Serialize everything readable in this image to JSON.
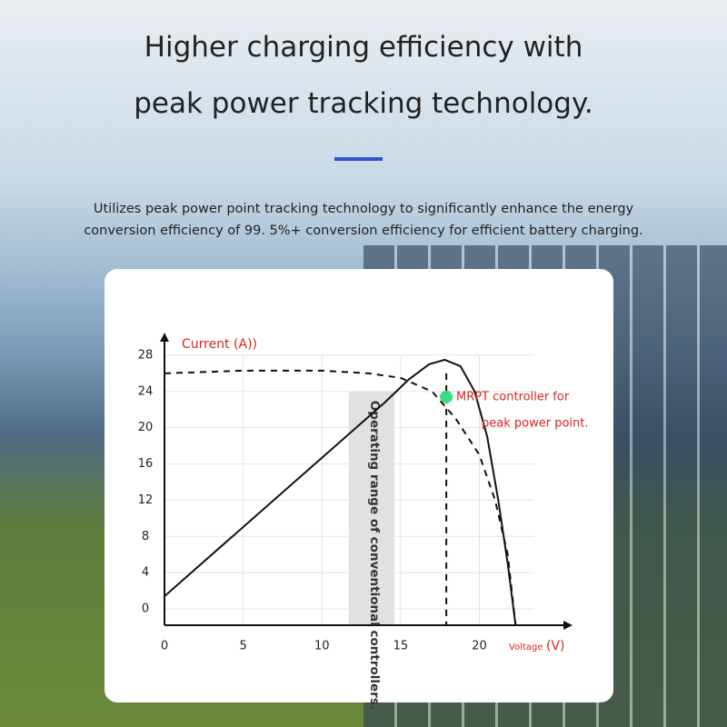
{
  "header": {
    "title_lines": [
      "Higher charging efficiency with",
      "peak power tracking technology."
    ],
    "description_lines": [
      "Utilizes peak power point tracking technology to significantly enhance the energy",
      "conversion efficiency of 99. 5%+ conversion efficiency for efficient battery charging."
    ]
  },
  "chart_data": {
    "type": "line",
    "y_label": "Current (A))",
    "x_label": "Voltage",
    "x_unit": "(V)",
    "xlim": [
      0,
      25.8
    ],
    "ylim": [
      -1.8,
      30.3
    ],
    "xticks": [
      0,
      5,
      10,
      15,
      20
    ],
    "yticks": [
      0,
      4,
      8,
      12,
      16,
      20,
      24,
      28
    ],
    "grid": true,
    "series": [
      {
        "style": "solid",
        "color": "#111111",
        "x": [
          0,
          14,
          15.5,
          16.8,
          17.8,
          18.8,
          19.7,
          20.5,
          21.2,
          21.8,
          22.3
        ],
        "values": [
          1.4,
          22.8,
          25.3,
          27,
          27.5,
          26.8,
          24,
          19,
          12,
          5,
          -1.8
        ]
      },
      {
        "style": "dashed",
        "color": "#111111",
        "x": [
          0,
          5,
          10,
          13,
          15,
          17,
          18.5,
          20,
          21,
          21.8,
          22.3
        ],
        "values": [
          26,
          26.3,
          26.3,
          26,
          25.5,
          24,
          21,
          17,
          12,
          6,
          -1.8
        ]
      }
    ],
    "band": {
      "x": [
        11.7,
        14.6
      ],
      "top": 24,
      "color": "#d9d9d9",
      "label": "Operating range of conventional controllers."
    },
    "marker": {
      "x": 17.9,
      "y": 23.4,
      "line_top": 26,
      "color": "#3ddc84",
      "label_lines": [
        "MRPT controller for",
        "peak power point."
      ],
      "label_color": "#d7261e"
    }
  }
}
